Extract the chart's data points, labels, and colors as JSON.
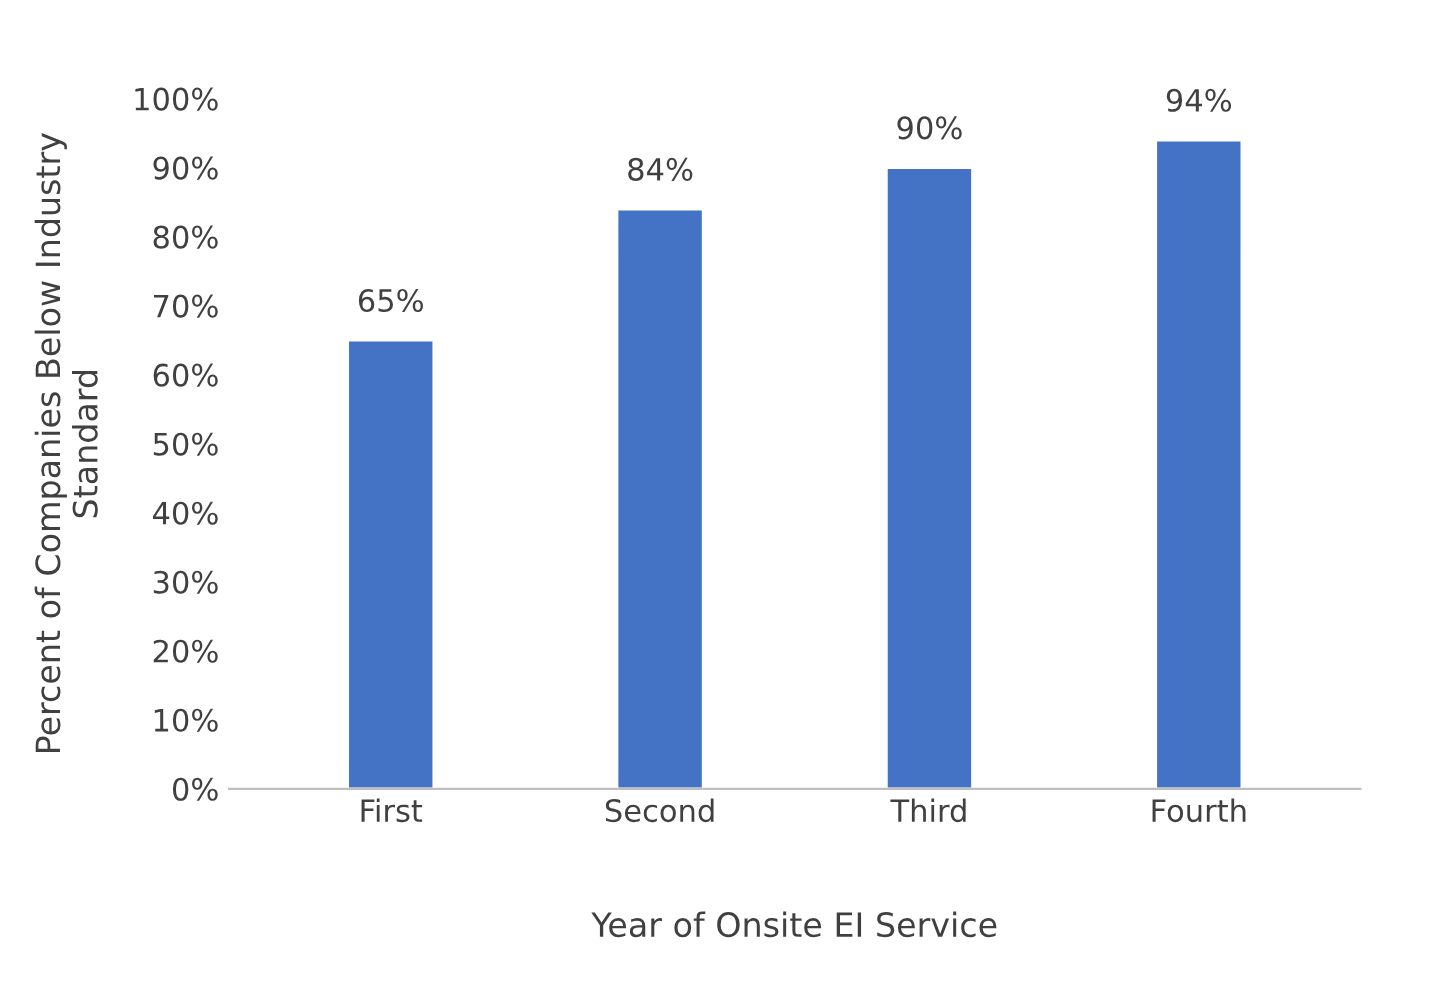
{
  "chart_data": {
    "type": "bar",
    "categories": [
      "First",
      "Second",
      "Third",
      "Fourth"
    ],
    "values": [
      65,
      84,
      90,
      94
    ],
    "value_labels": [
      "65%",
      "84%",
      "90%",
      "94%"
    ],
    "color": "#4472c4",
    "xlabel": "Year of Onsite EI Service",
    "ylabel": "Percent of Companies Below Industry\nStandard",
    "ylim": [
      0,
      100
    ],
    "yticks": [
      {
        "value": 0,
        "label": "0%"
      },
      {
        "value": 10,
        "label": "10%"
      },
      {
        "value": 20,
        "label": "20%"
      },
      {
        "value": 30,
        "label": "30%"
      },
      {
        "value": 40,
        "label": "40%"
      },
      {
        "value": 50,
        "label": "50%"
      },
      {
        "value": 60,
        "label": "60%"
      },
      {
        "value": 70,
        "label": "70%"
      },
      {
        "value": 80,
        "label": "80%"
      },
      {
        "value": 90,
        "label": "90%"
      },
      {
        "value": 100,
        "label": "100%"
      }
    ],
    "grid": false,
    "legend": false
  }
}
